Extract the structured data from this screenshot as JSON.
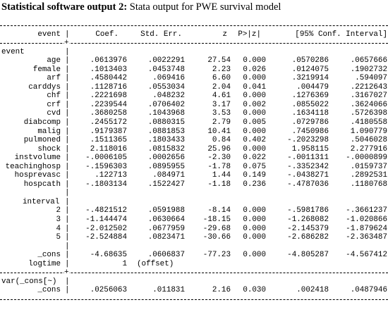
{
  "caption": {
    "bold": "Statistical software output 2:",
    "rest": " Stata output for PWE survival model"
  },
  "header": {
    "event": "event",
    "coef": "Coef.",
    "se": "Std. Err.",
    "z": "z",
    "p": "P>|z|",
    "ci": "[95% Conf. Interval]"
  },
  "sections": {
    "event": "event",
    "interval": "interval",
    "var": "var(_cons[~)"
  },
  "event_rows": [
    {
      "name": "age",
      "coef": ".0613976",
      "se": ".0022291",
      "z": "27.54",
      "p": "0.000",
      "lo": ".0570286",
      "hi": ".0657666"
    },
    {
      "name": "female",
      "coef": ".1013403",
      "se": ".0453748",
      "z": "2.23",
      "p": "0.026",
      "lo": ".0124075",
      "hi": ".1902732"
    },
    {
      "name": "arf",
      "coef": ".4580442",
      "se": ".069416",
      "z": "6.60",
      "p": "0.000",
      "lo": ".3219914",
      "hi": ".594097"
    },
    {
      "name": "carddys",
      "coef": ".1128716",
      "se": ".0553034",
      "z": "2.04",
      "p": "0.041",
      "lo": ".004479",
      "hi": ".2212643"
    },
    {
      "name": "chf",
      "coef": ".2221698",
      "se": ".048232",
      "z": "4.61",
      "p": "0.000",
      "lo": ".1276369",
      "hi": ".3167027"
    },
    {
      "name": "crf",
      "coef": ".2239544",
      "se": ".0706402",
      "z": "3.17",
      "p": "0.002",
      "lo": ".0855022",
      "hi": ".3624066"
    },
    {
      "name": "cvd",
      "coef": ".3680258",
      "se": ".1043968",
      "z": "3.53",
      "p": "0.000",
      "lo": ".1634118",
      "hi": ".5726398"
    },
    {
      "name": "diabcomp",
      "coef": ".2455172",
      "se": ".0880315",
      "z": "2.79",
      "p": "0.005",
      "lo": ".0729786",
      "hi": ".4180558"
    },
    {
      "name": "malig",
      "coef": ".9179387",
      "se": ".0881853",
      "z": "10.41",
      "p": "0.000",
      "lo": ".7450986",
      "hi": "1.090779"
    },
    {
      "name": "pulmoned",
      "coef": ".1511365",
      "se": ".1803433",
      "z": "0.84",
      "p": "0.402",
      "lo": "-.2023298",
      "hi": ".5046028"
    },
    {
      "name": "shock",
      "coef": "2.118016",
      "se": ".0815832",
      "z": "25.96",
      "p": "0.000",
      "lo": "1.958115",
      "hi": "2.277916"
    },
    {
      "name": "instvolume",
      "coef": "-.0006105",
      "se": ".0002656",
      "z": "-2.30",
      "p": "0.022",
      "lo": "-.0011311",
      "hi": "-.0000899"
    },
    {
      "name": "teachinghosp",
      "coef": "-.1596303",
      "se": ".0895955",
      "z": "-1.78",
      "p": "0.075",
      "lo": "-.3352342",
      "hi": ".0159737"
    },
    {
      "name": "hosprevasc",
      "coef": ".122713",
      "se": ".084971",
      "z": "1.44",
      "p": "0.149",
      "lo": "-.0438271",
      "hi": ".2892531"
    },
    {
      "name": "hospcath",
      "coef": "-.1803134",
      "se": ".1522427",
      "z": "-1.18",
      "p": "0.236",
      "lo": "-.4787036",
      "hi": ".1180768"
    }
  ],
  "interval_rows": [
    {
      "name": "2",
      "coef": "-.4821512",
      "se": ".0591988",
      "z": "-8.14",
      "p": "0.000",
      "lo": "-.5981786",
      "hi": "-.3661237"
    },
    {
      "name": "3",
      "coef": "-1.144474",
      "se": ".0630664",
      "z": "-18.15",
      "p": "0.000",
      "lo": "-1.268082",
      "hi": "-1.020866"
    },
    {
      "name": "4",
      "coef": "-2.012502",
      "se": ".0677959",
      "z": "-29.68",
      "p": "0.000",
      "lo": "-2.145379",
      "hi": "-1.879624"
    },
    {
      "name": "5",
      "coef": "-2.524884",
      "se": ".0823471",
      "z": "-30.66",
      "p": "0.000",
      "lo": "-2.686282",
      "hi": "-2.363487"
    }
  ],
  "cons_row": {
    "name": "_cons",
    "coef": "-4.68635",
    "se": ".0606837",
    "z": "-77.23",
    "p": "0.000",
    "lo": "-4.805287",
    "hi": "-4.567412"
  },
  "logtime_row": {
    "name": "logtime",
    "coef": "1",
    "note": "(offset)"
  },
  "var_cons_row": {
    "name": "_cons",
    "coef": ".0256063",
    "se": ".011831",
    "z": "2.16",
    "p": "0.030",
    "lo": ".002418",
    "hi": ".0487946"
  }
}
